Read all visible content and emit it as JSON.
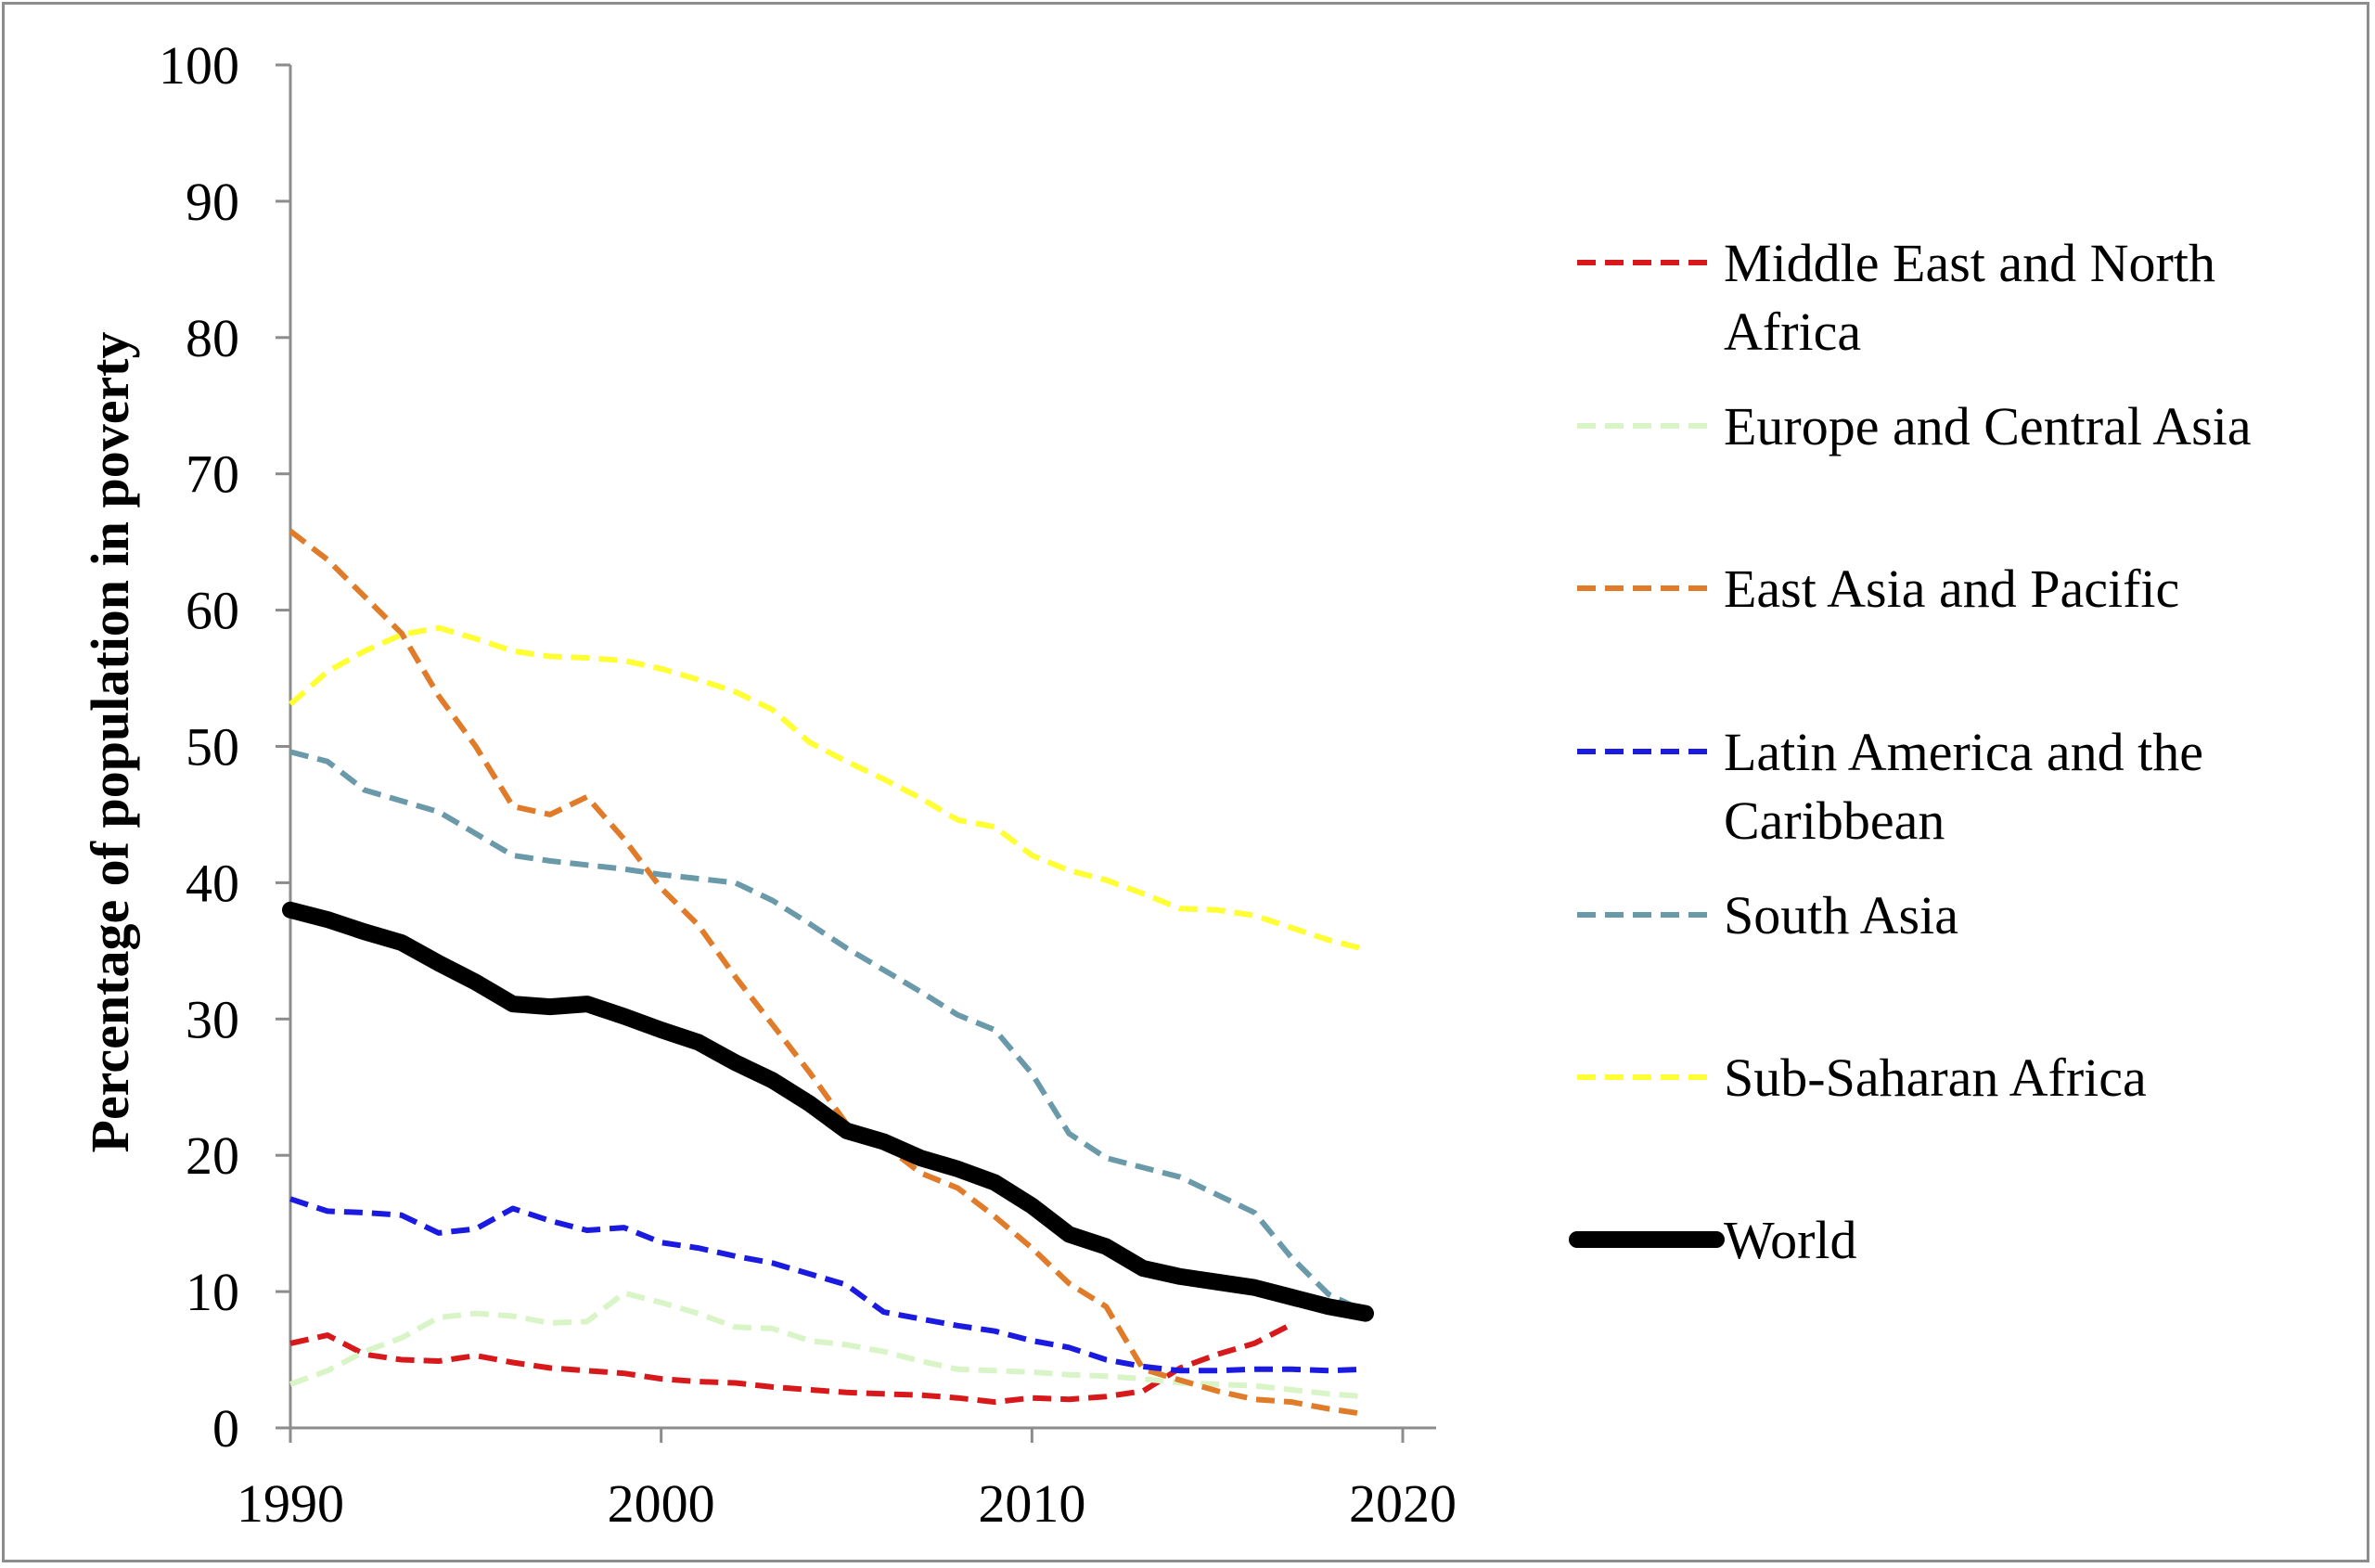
{
  "chart_data": {
    "type": "line",
    "title": "",
    "xlabel": "",
    "ylabel": "Percentage of population in poverty",
    "xlim": [
      1990,
      2020
    ],
    "ylim": [
      0,
      100
    ],
    "xticks": [
      1990,
      2000,
      2010,
      2020
    ],
    "yticks": [
      0,
      10,
      20,
      30,
      40,
      50,
      60,
      70,
      80,
      90,
      100
    ],
    "grid": false,
    "legend_position": "right",
    "x": [
      1990,
      1991,
      1992,
      1993,
      1994,
      1995,
      1996,
      1997,
      1998,
      1999,
      2000,
      2001,
      2002,
      2003,
      2004,
      2005,
      2006,
      2007,
      2008,
      2009,
      2010,
      2011,
      2012,
      2013,
      2014,
      2015,
      2016,
      2017,
      2018,
      2019
    ],
    "series": [
      {
        "name": "Middle East and North Africa",
        "color": "#d7191c",
        "dash": true,
        "width": 6,
        "values": [
          6.2,
          6.8,
          5.4,
          5.0,
          4.9,
          5.3,
          4.8,
          4.4,
          4.2,
          4.0,
          3.6,
          3.4,
          3.3,
          3.0,
          2.8,
          2.6,
          2.5,
          2.4,
          2.2,
          1.9,
          2.2,
          2.1,
          2.3,
          2.7,
          4.4,
          5.4,
          6.2,
          7.6,
          null,
          null
        ]
      },
      {
        "name": "Europe and Central Asia",
        "color": "#d9f5c8",
        "dash": true,
        "width": 6,
        "values": [
          3.2,
          4.2,
          5.6,
          6.6,
          8.1,
          8.4,
          8.2,
          7.7,
          7.8,
          9.9,
          9.2,
          8.4,
          7.4,
          7.3,
          6.4,
          6.1,
          5.6,
          4.9,
          4.3,
          4.2,
          4.1,
          3.9,
          3.8,
          3.6,
          3.3,
          3.2,
          3.1,
          2.8,
          2.5,
          2.3
        ]
      },
      {
        "name": "East Asia and Pacific",
        "color": "#e07b2a",
        "dash": true,
        "width": 6,
        "values": [
          65.8,
          63.7,
          61.0,
          58.3,
          53.7,
          50.0,
          45.6,
          45.0,
          46.3,
          43.2,
          39.6,
          36.9,
          33.1,
          29.6,
          26.1,
          22.3,
          20.8,
          18.7,
          17.6,
          15.5,
          13.2,
          10.6,
          8.9,
          4.3,
          3.5,
          2.7,
          2.1,
          1.9,
          1.4,
          1.0
        ]
      },
      {
        "name": "Latin America and the Caribbean",
        "color": "#1a1ae0",
        "dash": true,
        "width": 6,
        "values": [
          16.8,
          15.9,
          15.8,
          15.6,
          14.3,
          14.6,
          16.1,
          15.2,
          14.5,
          14.7,
          13.6,
          13.2,
          12.6,
          12.1,
          11.3,
          10.5,
          8.5,
          8.0,
          7.5,
          7.1,
          6.4,
          5.9,
          5.0,
          4.5,
          4.2,
          4.2,
          4.3,
          4.3,
          4.2,
          4.3
        ]
      },
      {
        "name": "South Asia",
        "color": "#6a9aa9",
        "dash": true,
        "width": 6,
        "values": [
          49.6,
          48.9,
          46.8,
          46.0,
          45.2,
          43.6,
          42.0,
          41.6,
          41.3,
          41.0,
          40.6,
          40.3,
          40.0,
          38.7,
          37.0,
          35.2,
          33.6,
          32.0,
          30.3,
          29.2,
          26.0,
          21.6,
          19.8,
          19.1,
          18.4,
          17.1,
          15.8,
          12.5,
          9.8,
          8.5
        ]
      },
      {
        "name": "Sub-Saharan Africa",
        "color": "#ffff33",
        "dash": true,
        "width": 6,
        "values": [
          53.1,
          55.5,
          57.0,
          58.2,
          58.7,
          57.9,
          57.0,
          56.6,
          56.5,
          56.3,
          55.7,
          54.9,
          54.0,
          52.7,
          50.3,
          48.9,
          47.6,
          46.2,
          44.6,
          44.1,
          42.0,
          40.9,
          40.2,
          39.2,
          38.1,
          38.0,
          37.6,
          36.7,
          35.8,
          35.1
        ]
      },
      {
        "name": "World",
        "color": "#000000",
        "dash": false,
        "width": 18,
        "values": [
          38.0,
          37.3,
          36.4,
          35.6,
          34.1,
          32.7,
          31.1,
          30.9,
          31.1,
          30.2,
          29.2,
          28.3,
          26.8,
          25.5,
          23.8,
          21.8,
          21.0,
          19.8,
          19.0,
          18.0,
          16.3,
          14.2,
          13.3,
          11.7,
          11.1,
          10.7,
          10.3,
          9.6,
          8.9,
          8.4
        ]
      }
    ]
  }
}
